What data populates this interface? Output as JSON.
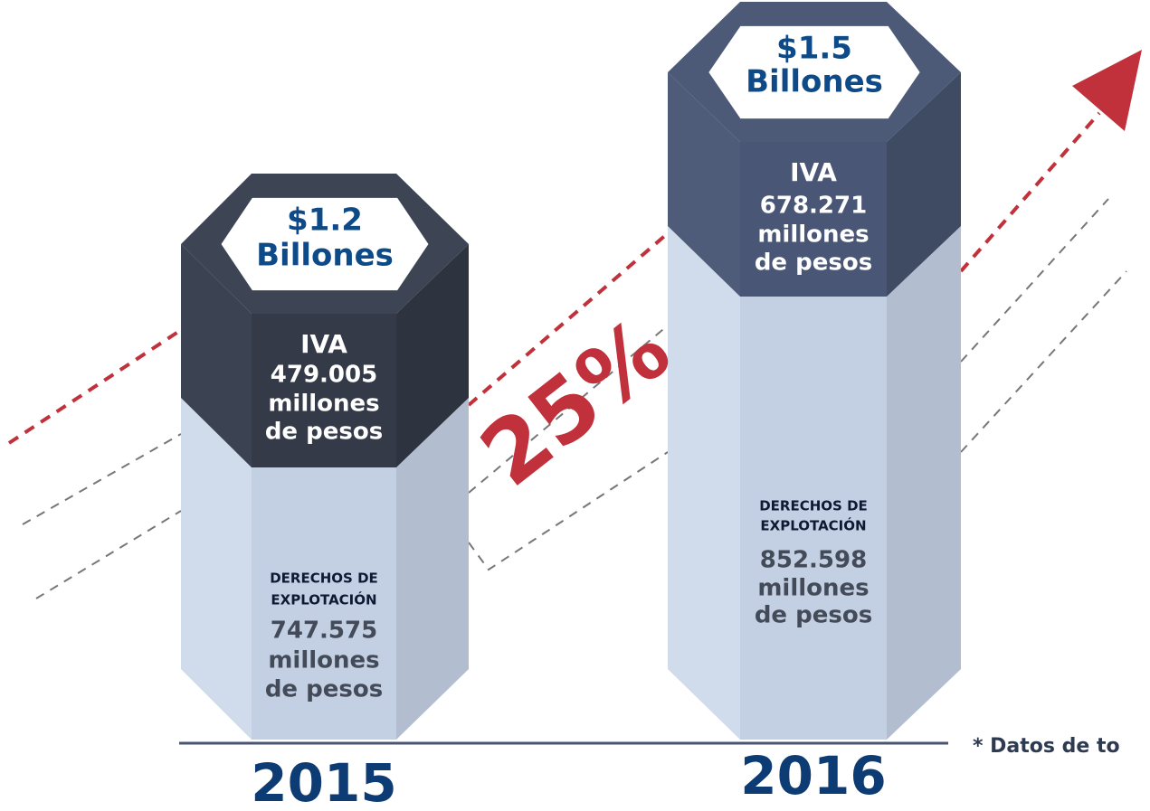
{
  "columns": [
    {
      "total": [
        "$1.2",
        "Billones"
      ],
      "iva": [
        "IVA",
        "479.005",
        "millones",
        "de pesos"
      ],
      "derechos_title": [
        "DERECHOS DE",
        "EXPLOTACIÓN"
      ],
      "derechos": [
        "747.575",
        "millones",
        "de pesos"
      ],
      "year": "2015"
    },
    {
      "total": [
        "$1.5",
        "Billones"
      ],
      "iva": [
        "IVA",
        "678.271",
        "millones",
        "de pesos"
      ],
      "derechos_title": [
        "DERECHOS DE",
        "EXPLOTACIÓN"
      ],
      "derechos": [
        "852.598",
        "millones",
        "de pesos"
      ],
      "year": "2016"
    }
  ],
  "growth": "25%",
  "note": "* Datos de to"
}
